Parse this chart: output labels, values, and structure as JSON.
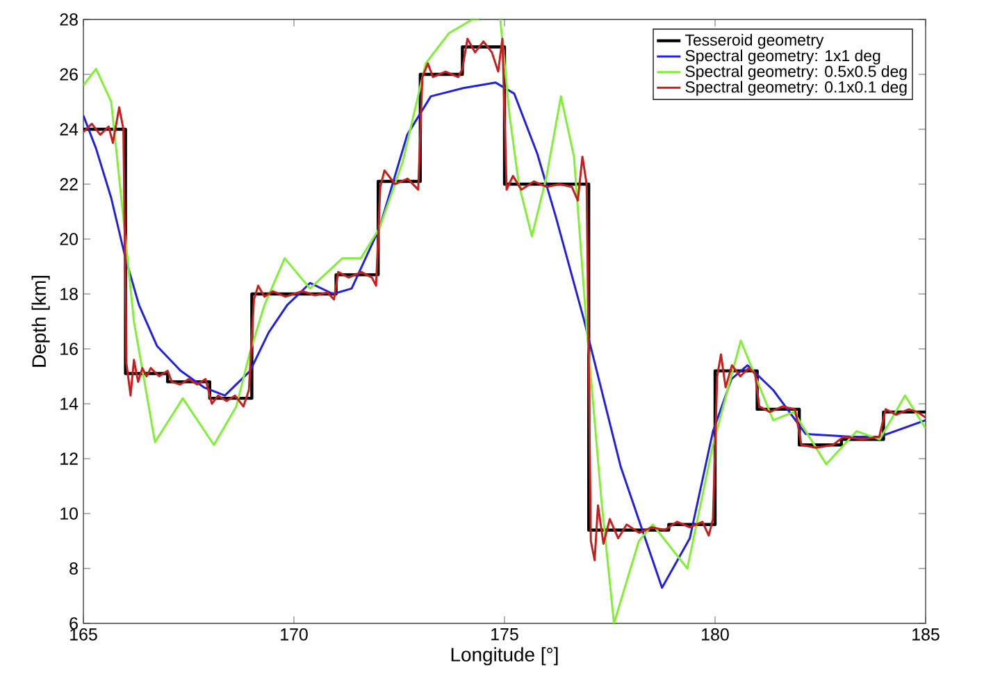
{
  "chart_data": {
    "type": "line",
    "xlabel": "Longitude [°]",
    "ylabel": "Depth [km]",
    "xlim": [
      165,
      185
    ],
    "ylim": [
      6,
      28
    ],
    "xticks": [
      165,
      170,
      175,
      180,
      185
    ],
    "yticks": [
      6,
      8,
      10,
      12,
      14,
      16,
      18,
      20,
      22,
      24,
      26,
      28
    ],
    "legend": "top right",
    "grid": false,
    "series": [
      {
        "name": "Tesseroid geometry",
        "color": "#000000",
        "x": [
          165,
          166,
          166,
          167,
          167,
          168,
          168,
          169,
          169,
          171,
          171,
          172,
          172,
          173,
          173,
          174,
          174,
          175,
          175,
          177,
          177,
          178.9,
          178.9,
          180,
          180,
          181,
          181,
          182,
          182,
          183,
          183,
          184,
          184,
          185
        ],
        "values": [
          24.0,
          24.0,
          15.1,
          15.1,
          14.8,
          14.8,
          14.2,
          14.2,
          18.0,
          18.0,
          18.7,
          18.7,
          22.1,
          22.1,
          26.0,
          26.0,
          27.0,
          27.0,
          22.0,
          22.0,
          9.4,
          9.4,
          9.6,
          9.6,
          15.2,
          15.2,
          13.8,
          13.8,
          12.5,
          12.5,
          12.7,
          12.7,
          13.7,
          13.7
        ]
      },
      {
        "name": "Spectral geometry: 1x1 deg",
        "color": "#1f1fe6",
        "x": [
          165,
          165.3,
          165.66,
          166.0,
          166.32,
          166.75,
          167.31,
          167.86,
          168.36,
          168.96,
          169.4,
          169.84,
          170.05,
          170.38,
          170.93,
          171.37,
          172.03,
          172.69,
          173.25,
          174.02,
          174.79,
          175.23,
          175.78,
          176.22,
          176.88,
          177.76,
          178.74,
          179.4,
          179.95,
          180.39,
          180.77,
          181.38,
          182.15,
          183.25,
          183.91,
          185
        ],
        "values": [
          24.5,
          23.3,
          21.5,
          19.3,
          17.6,
          16.1,
          15.2,
          14.6,
          14.3,
          15.2,
          16.6,
          17.6,
          17.9,
          18.4,
          18.0,
          18.2,
          20.4,
          23.8,
          25.2,
          25.5,
          25.7,
          25.3,
          23.1,
          20.8,
          17.1,
          11.7,
          7.3,
          9.1,
          13.0,
          14.9,
          15.4,
          14.5,
          12.9,
          12.8,
          12.8,
          13.4
        ]
      },
      {
        "name": "Spectral geometry: 0.5x0.5 deg",
        "color": "#80f033",
        "x": [
          165,
          165.3,
          165.66,
          165.9,
          166.2,
          166.7,
          167.36,
          168.1,
          168.63,
          168.96,
          169.3,
          169.78,
          170.38,
          171.15,
          171.59,
          172.03,
          172.58,
          173.13,
          173.68,
          174.24,
          174.4,
          174.6,
          174.9,
          175.12,
          175.34,
          175.65,
          176.0,
          176.34,
          176.65,
          176.96,
          177.3,
          177.6,
          178.19,
          178.52,
          179.34,
          179.95,
          180.61,
          181.38,
          181.87,
          182.64,
          183.36,
          183.91,
          184.51,
          185
        ],
        "values": [
          25.6,
          26.2,
          25.0,
          21.5,
          17.0,
          12.6,
          14.2,
          12.5,
          13.9,
          15.9,
          17.6,
          19.3,
          18.2,
          19.3,
          19.3,
          20.4,
          22.8,
          26.4,
          27.5,
          28.0,
          28.0,
          null,
          28.0,
          24.5,
          22.0,
          20.1,
          22.3,
          25.2,
          23.0,
          16.6,
          10.5,
          6.0,
          9.0,
          9.6,
          8.0,
          12.5,
          16.3,
          13.4,
          13.7,
          11.8,
          13.0,
          12.7,
          14.3,
          13.1
        ]
      },
      {
        "name": "Spectral geometry: 0.1x0.1 deg",
        "color": "#c81e1e",
        "x": [
          165,
          165.2,
          165.4,
          165.6,
          165.7,
          165.85,
          165.95,
          166.02,
          166.12,
          166.2,
          166.3,
          166.4,
          166.5,
          166.6,
          166.8,
          167.0,
          167.1,
          167.3,
          167.5,
          167.7,
          167.9,
          168.05,
          168.2,
          168.4,
          168.6,
          168.8,
          168.93,
          169.05,
          169.15,
          169.3,
          169.5,
          169.8,
          170.2,
          170.5,
          170.8,
          170.95,
          171.05,
          171.3,
          171.6,
          171.85,
          171.95,
          172.05,
          172.15,
          172.4,
          172.7,
          172.95,
          173.05,
          173.18,
          173.3,
          173.6,
          173.9,
          174.0,
          174.12,
          174.3,
          174.5,
          174.7,
          174.85,
          174.95,
          175.05,
          175.2,
          175.4,
          175.7,
          176.0,
          176.3,
          176.6,
          176.74,
          176.85,
          176.95,
          177.05,
          177.14,
          177.22,
          177.35,
          177.5,
          177.7,
          177.9,
          178.2,
          178.5,
          178.8,
          179.1,
          179.4,
          179.7,
          179.85,
          179.95,
          180.05,
          180.14,
          180.25,
          180.4,
          180.6,
          180.8,
          180.95,
          181.05,
          181.3,
          181.6,
          181.9,
          182.05,
          182.4,
          182.8,
          183.05,
          183.5,
          183.9,
          184.05,
          184.3,
          184.6,
          184.8,
          185
        ],
        "values": [
          23.9,
          24.2,
          23.8,
          24.1,
          23.5,
          24.8,
          24.0,
          15.5,
          14.3,
          15.6,
          14.8,
          15.3,
          15.0,
          15.3,
          15.0,
          15.2,
          14.8,
          14.7,
          14.9,
          14.7,
          14.9,
          14.0,
          14.3,
          14.1,
          14.3,
          13.9,
          14.5,
          17.8,
          18.3,
          17.9,
          18.1,
          17.9,
          18.1,
          17.95,
          18.05,
          17.8,
          18.8,
          18.6,
          18.8,
          18.6,
          18.3,
          21.9,
          22.5,
          22.0,
          22.2,
          21.8,
          25.9,
          26.4,
          25.9,
          26.1,
          25.9,
          26.2,
          27.3,
          26.8,
          27.2,
          26.8,
          26.1,
          27.3,
          21.8,
          22.3,
          21.8,
          22.1,
          21.9,
          22.0,
          21.9,
          21.4,
          23.0,
          22.0,
          9.0,
          8.3,
          10.3,
          8.9,
          9.8,
          9.1,
          9.6,
          9.3,
          9.5,
          9.4,
          9.7,
          9.5,
          9.7,
          9.2,
          9.8,
          15.0,
          15.8,
          14.6,
          15.4,
          15.0,
          15.3,
          15.1,
          13.9,
          13.7,
          13.9,
          13.8,
          12.5,
          12.4,
          12.5,
          12.8,
          12.7,
          12.8,
          13.8,
          13.6,
          13.8,
          13.7,
          13.5
        ]
      }
    ]
  }
}
